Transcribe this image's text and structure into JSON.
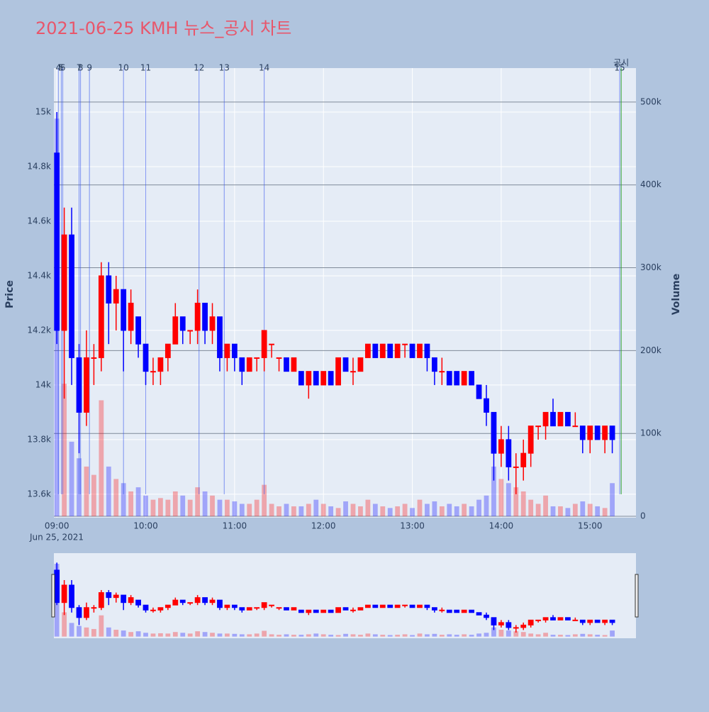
{
  "chart_data": {
    "type": "candlestick",
    "title": "2021-06-25 KMH 뉴스_공시 차트",
    "y_label": "Price",
    "y2_label": "Volume",
    "x_date_label": "Jun 25, 2021",
    "increasing_color": "#ff0000",
    "decreasing_color": "#0000ff",
    "xlim": [
      "2021-06-25 08:58",
      "2021-06-25 15:31"
    ],
    "xticks": [
      {
        "value": "2021-06-25 09:00",
        "label": "09:00"
      },
      {
        "value": "2021-06-25 10:00",
        "label": "10:00"
      },
      {
        "value": "2021-06-25 11:00",
        "label": "11:00"
      },
      {
        "value": "2021-06-25 12:00",
        "label": "12:00"
      },
      {
        "value": "2021-06-25 13:00",
        "label": "13:00"
      },
      {
        "value": "2021-06-25 14:00",
        "label": "14:00"
      },
      {
        "value": "2021-06-25 15:00",
        "label": "15:00"
      }
    ],
    "ylim": [
      13514,
      15161
    ],
    "yticks": [
      {
        "value": 13600,
        "label": "13.6k"
      },
      {
        "value": 13800,
        "label": "13.8k"
      },
      {
        "value": 14000,
        "label": "14k"
      },
      {
        "value": 14200,
        "label": "14.2k"
      },
      {
        "value": 14400,
        "label": "14.4k"
      },
      {
        "value": 14600,
        "label": "14.6k"
      },
      {
        "value": 14800,
        "label": "14.8k"
      },
      {
        "value": 15000,
        "label": "15k"
      }
    ],
    "y2lim": [
      -1700,
      541000
    ],
    "y2ticks": [
      0,
      {
        "value": 100000,
        "label": "100k"
      },
      {
        "value": 200000,
        "label": "200k"
      },
      {
        "value": 300000,
        "label": "300k"
      },
      {
        "value": 400000,
        "label": "400k"
      },
      {
        "value": 500000,
        "label": "500k"
      }
    ],
    "grid": true,
    "x": [
      "2021-06-25 09:00",
      "2021-06-25 09:05",
      "2021-06-25 09:10",
      "2021-06-25 09:15",
      "2021-06-25 09:20",
      "2021-06-25 09:25",
      "2021-06-25 09:30",
      "2021-06-25 09:35",
      "2021-06-25 09:40",
      "2021-06-25 09:45",
      "2021-06-25 09:50",
      "2021-06-25 09:55",
      "2021-06-25 10:00",
      "2021-06-25 10:05",
      "2021-06-25 10:10",
      "2021-06-25 10:15",
      "2021-06-25 10:20",
      "2021-06-25 10:25",
      "2021-06-25 10:30",
      "2021-06-25 10:35",
      "2021-06-25 10:40",
      "2021-06-25 10:45",
      "2021-06-25 10:50",
      "2021-06-25 10:55",
      "2021-06-25 11:00",
      "2021-06-25 11:05",
      "2021-06-25 11:10",
      "2021-06-25 11:15",
      "2021-06-25 11:20",
      "2021-06-25 11:25",
      "2021-06-25 11:30",
      "2021-06-25 11:35",
      "2021-06-25 11:40",
      "2021-06-25 11:45",
      "2021-06-25 11:50",
      "2021-06-25 11:55",
      "2021-06-25 12:00",
      "2021-06-25 12:05",
      "2021-06-25 12:10",
      "2021-06-25 12:15",
      "2021-06-25 12:20",
      "2021-06-25 12:25",
      "2021-06-25 12:30",
      "2021-06-25 12:35",
      "2021-06-25 12:40",
      "2021-06-25 12:45",
      "2021-06-25 12:50",
      "2021-06-25 12:55",
      "2021-06-25 13:00",
      "2021-06-25 13:05",
      "2021-06-25 13:10",
      "2021-06-25 13:15",
      "2021-06-25 13:20",
      "2021-06-25 13:25",
      "2021-06-25 13:30",
      "2021-06-25 13:35",
      "2021-06-25 13:40",
      "2021-06-25 13:45",
      "2021-06-25 13:50",
      "2021-06-25 13:55",
      "2021-06-25 14:00",
      "2021-06-25 14:05",
      "2021-06-25 14:10",
      "2021-06-25 14:15",
      "2021-06-25 14:20",
      "2021-06-25 14:25",
      "2021-06-25 14:30",
      "2021-06-25 14:35",
      "2021-06-25 14:40",
      "2021-06-25 14:45",
      "2021-06-25 14:50",
      "2021-06-25 14:55",
      "2021-06-25 15:00",
      "2021-06-25 15:05",
      "2021-06-25 15:10",
      "2021-06-25 15:15"
    ],
    "open": [
      14850,
      14200,
      14550,
      14100,
      13900,
      14100,
      14100,
      14400,
      14300,
      14350,
      14200,
      14250,
      14150,
      14050,
      14050,
      14100,
      14150,
      14250,
      14200,
      14200,
      14300,
      14200,
      14250,
      14100,
      14150,
      14100,
      14050,
      14100,
      14100,
      14150,
      14100,
      14100,
      14050,
      14050,
      14000,
      14050,
      14000,
      14050,
      14000,
      14100,
      14050,
      14050,
      14100,
      14150,
      14100,
      14150,
      14100,
      14150,
      14150,
      14100,
      14150,
      14100,
      14050,
      14050,
      14050,
      14000,
      14050,
      14000,
      13950,
      13900,
      13750,
      13800,
      13700,
      13700,
      13750,
      13850,
      13850,
      13900,
      13850,
      13900,
      13850,
      13850,
      13800,
      13850,
      13800,
      13850
    ],
    "high": [
      15000,
      14650,
      14650,
      14150,
      14200,
      14150,
      14450,
      14450,
      14400,
      14350,
      14350,
      14250,
      14150,
      14100,
      14100,
      14150,
      14300,
      14250,
      14200,
      14350,
      14300,
      14300,
      14250,
      14150,
      14150,
      14100,
      14100,
      14100,
      14200,
      14150,
      14100,
      14100,
      14100,
      14050,
      14050,
      14050,
      14050,
      14050,
      14100,
      14100,
      14100,
      14100,
      14150,
      14150,
      14150,
      14150,
      14150,
      14150,
      14150,
      14150,
      14150,
      14100,
      14100,
      14050,
      14050,
      14050,
      14050,
      14000,
      14000,
      13900,
      13850,
      13850,
      13750,
      13800,
      13850,
      13850,
      13900,
      13950,
      13900,
      13900,
      13900,
      13850,
      13850,
      13850,
      13850,
      13850
    ],
    "low": [
      14150,
      13950,
      14000,
      13750,
      13850,
      14000,
      14050,
      14150,
      14200,
      14050,
      14150,
      14100,
      14000,
      14000,
      14000,
      14050,
      14150,
      14150,
      14150,
      14150,
      14150,
      14150,
      14050,
      14050,
      14050,
      14000,
      14050,
      14050,
      14050,
      14100,
      14050,
      14050,
      14050,
      14000,
      13950,
      14000,
      14000,
      14000,
      14000,
      14050,
      14000,
      14050,
      14100,
      14100,
      14100,
      14100,
      14100,
      14100,
      14100,
      14100,
      14050,
      14000,
      14000,
      14000,
      14000,
      14000,
      14000,
      13950,
      13850,
      13650,
      13700,
      13650,
      13600,
      13650,
      13700,
      13800,
      13800,
      13850,
      13850,
      13850,
      13850,
      13750,
      13750,
      13800,
      13750,
      13750
    ],
    "close": [
      14200,
      14550,
      14100,
      13900,
      14100,
      14100,
      14400,
      14300,
      14350,
      14200,
      14300,
      14150,
      14050,
      14050,
      14100,
      14150,
      14250,
      14200,
      14200,
      14300,
      14200,
      14250,
      14100,
      14150,
      14100,
      14050,
      14100,
      14100,
      14200,
      14150,
      14100,
      14050,
      14100,
      14000,
      14050,
      14000,
      14050,
      14000,
      14100,
      14050,
      14050,
      14100,
      14150,
      14100,
      14150,
      14100,
      14150,
      14150,
      14100,
      14150,
      14100,
      14050,
      14050,
      14000,
      14000,
      14050,
      14000,
      13950,
      13900,
      13750,
      13800,
      13700,
      13700,
      13750,
      13850,
      13850,
      13900,
      13850,
      13900,
      13850,
      13850,
      13800,
      13850,
      13800,
      13850,
      13800
    ],
    "volume": [
      480000,
      160000,
      90000,
      70000,
      60000,
      50000,
      140000,
      60000,
      45000,
      40000,
      30000,
      35000,
      25000,
      20000,
      22000,
      20000,
      30000,
      25000,
      20000,
      35000,
      30000,
      25000,
      20000,
      20000,
      18000,
      15000,
      15000,
      20000,
      38000,
      15000,
      12000,
      15000,
      12000,
      12000,
      15000,
      20000,
      15000,
      12000,
      10000,
      18000,
      15000,
      12000,
      20000,
      15000,
      12000,
      10000,
      12000,
      15000,
      10000,
      20000,
      15000,
      18000,
      12000,
      15000,
      12000,
      15000,
      12000,
      20000,
      25000,
      60000,
      45000,
      40000,
      35000,
      30000,
      20000,
      15000,
      25000,
      12000,
      12000,
      10000,
      15000,
      18000,
      15000,
      12000,
      10000,
      40000
    ],
    "events": [
      {
        "label": "4",
        "time": "2021-06-25 09:01"
      },
      {
        "label": "5",
        "time": "2021-06-25 09:03"
      },
      {
        "label": "6",
        "time": "2021-06-25 09:04"
      },
      {
        "label": "7",
        "time": "2021-06-25 09:15"
      },
      {
        "label": "8",
        "time": "2021-06-25 09:16"
      },
      {
        "label": "9",
        "time": "2021-06-25 09:22"
      },
      {
        "label": "10",
        "time": "2021-06-25 09:45"
      },
      {
        "label": "11",
        "time": "2021-06-25 10:00"
      },
      {
        "label": "12",
        "time": "2021-06-25 10:36"
      },
      {
        "label": "13",
        "time": "2021-06-25 10:53"
      },
      {
        "label": "14",
        "time": "2021-06-25 11:20"
      },
      {
        "label": "15",
        "time": "2021-06-25 15:20"
      }
    ],
    "disclosure": {
      "label": "공시",
      "time": "2021-06-25 15:21"
    }
  }
}
